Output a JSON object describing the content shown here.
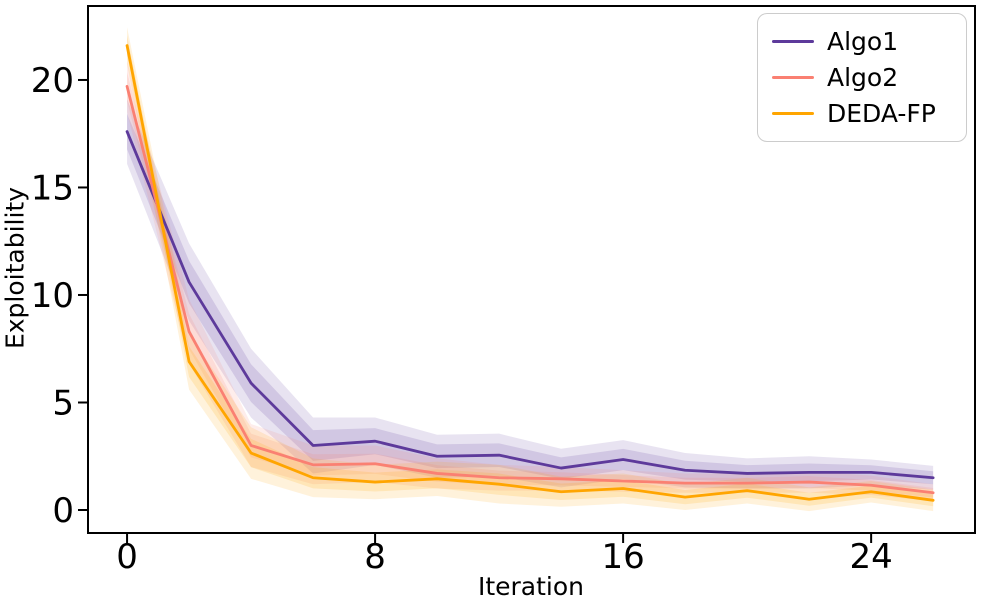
{
  "figure": {
    "background": "#ffffff",
    "axis_color": "#000000"
  },
  "chart_data": {
    "type": "line",
    "title": "",
    "xlabel": "Iteration",
    "ylabel": "Exploitability",
    "grid": false,
    "x": [
      0,
      2,
      4,
      6,
      8,
      10,
      12,
      14,
      16,
      18,
      20,
      22,
      24,
      26
    ],
    "series": [
      {
        "name": "Algo1",
        "color": "#5D3A9B",
        "values": [
          17.6,
          10.6,
          5.9,
          3.0,
          3.2,
          2.5,
          2.55,
          1.95,
          2.35,
          1.85,
          1.7,
          1.75,
          1.75,
          1.5
        ],
        "band": [
          1.5,
          1.8,
          1.6,
          1.3,
          1.1,
          1.0,
          1.0,
          0.9,
          0.9,
          0.8,
          0.7,
          0.75,
          0.6,
          0.55
        ]
      },
      {
        "name": "Algo2",
        "color": "#FA8072",
        "values": [
          19.7,
          8.3,
          3.0,
          2.1,
          2.15,
          1.7,
          1.5,
          1.45,
          1.35,
          1.25,
          1.25,
          1.3,
          1.15,
          0.8
        ],
        "band": [
          1.2,
          1.5,
          1.0,
          0.9,
          0.85,
          0.7,
          0.6,
          0.55,
          0.5,
          0.45,
          0.45,
          0.5,
          0.45,
          0.4
        ]
      },
      {
        "name": "DEDA-FP",
        "color": "#FFA500",
        "values": [
          21.6,
          6.9,
          2.65,
          1.5,
          1.3,
          1.45,
          1.2,
          0.85,
          1.0,
          0.6,
          0.9,
          0.5,
          0.85,
          0.45
        ],
        "band": [
          0.85,
          1.3,
          1.2,
          0.9,
          0.8,
          0.8,
          0.9,
          0.7,
          0.7,
          0.6,
          0.6,
          0.55,
          0.5,
          0.5
        ]
      }
    ],
    "xticks": [
      0,
      8,
      16,
      24
    ],
    "yticks": [
      0,
      5,
      10,
      15,
      20
    ],
    "xlim": [
      -1.26,
      27.35
    ],
    "ylim": [
      -1.07,
      23.44
    ],
    "legend": {
      "position": "upper right",
      "labels": [
        "Algo1",
        "Algo2",
        "DEDA-FP"
      ]
    }
  }
}
